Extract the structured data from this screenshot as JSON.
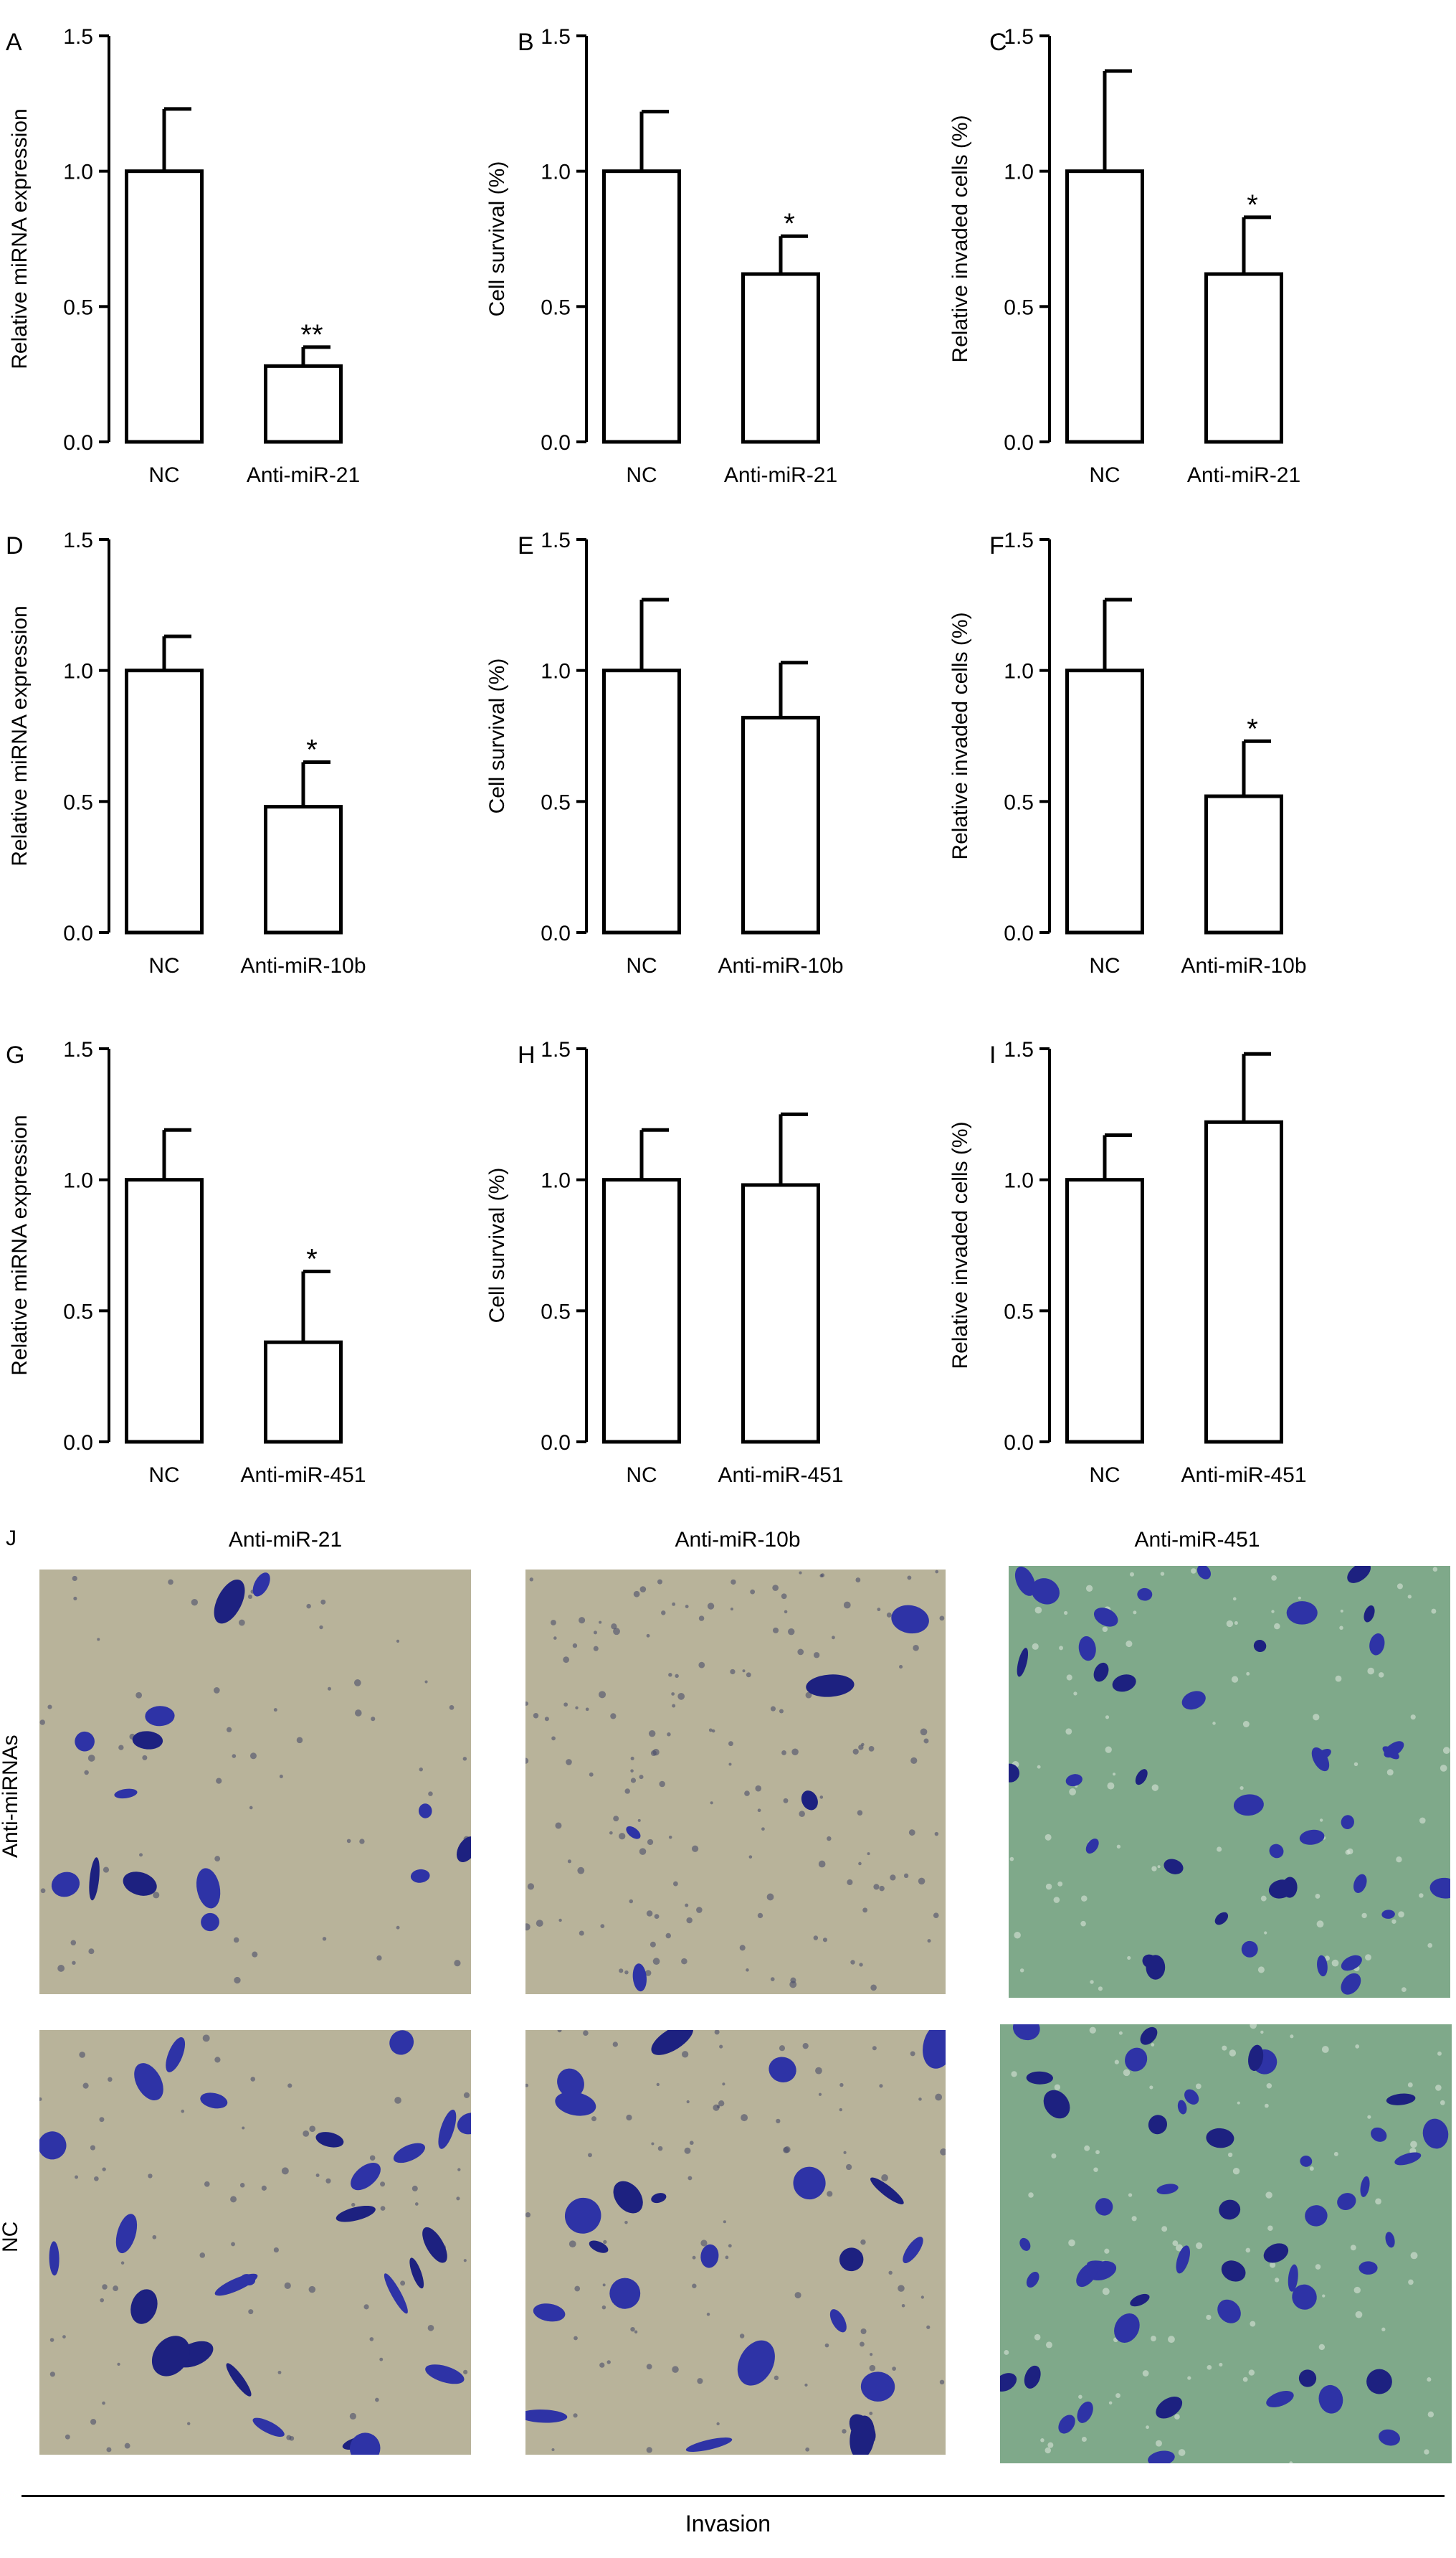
{
  "chart_data": [
    {
      "panel": "A",
      "type": "bar",
      "categories": [
        "NC",
        "Anti-miR-21"
      ],
      "values": [
        1.0,
        0.28
      ],
      "errors": [
        0.23,
        0.07
      ],
      "significance": [
        "",
        "**"
      ],
      "ylabel": "Relative miRNA expression",
      "ylim": [
        0,
        1.5
      ],
      "yticks": [
        "0.0",
        "0.5",
        "1.0",
        "1.5"
      ]
    },
    {
      "panel": "B",
      "type": "bar",
      "categories": [
        "NC",
        "Anti-miR-21"
      ],
      "values": [
        1.0,
        0.62
      ],
      "errors": [
        0.22,
        0.14
      ],
      "significance": [
        "",
        "*"
      ],
      "ylabel": "Cell survival (%)",
      "ylim": [
        0,
        1.5
      ],
      "yticks": [
        "0.0",
        "0.5",
        "1.0",
        "1.5"
      ]
    },
    {
      "panel": "C",
      "type": "bar",
      "categories": [
        "NC",
        "Anti-miR-21"
      ],
      "values": [
        1.0,
        0.62
      ],
      "errors": [
        0.37,
        0.21
      ],
      "significance": [
        "",
        "*"
      ],
      "ylabel": "Relative invaded cells (%)",
      "ylim": [
        0,
        1.5
      ],
      "yticks": [
        "0.0",
        "0.5",
        "1.0",
        "1.5"
      ]
    },
    {
      "panel": "D",
      "type": "bar",
      "categories": [
        "NC",
        "Anti-miR-10b"
      ],
      "values": [
        1.0,
        0.48
      ],
      "errors": [
        0.13,
        0.17
      ],
      "significance": [
        "",
        "*"
      ],
      "ylabel": "Relative miRNA expression",
      "ylim": [
        0,
        1.5
      ],
      "yticks": [
        "0.0",
        "0.5",
        "1.0",
        "1.5"
      ]
    },
    {
      "panel": "E",
      "type": "bar",
      "categories": [
        "NC",
        "Anti-miR-10b"
      ],
      "values": [
        1.0,
        0.82
      ],
      "errors": [
        0.27,
        0.21
      ],
      "significance": [
        "",
        ""
      ],
      "ylabel": "Cell survival (%)",
      "ylim": [
        0,
        1.5
      ],
      "yticks": [
        "0.0",
        "0.5",
        "1.0",
        "1.5"
      ]
    },
    {
      "panel": "F",
      "type": "bar",
      "categories": [
        "NC",
        "Anti-miR-10b"
      ],
      "values": [
        1.0,
        0.52
      ],
      "errors": [
        0.27,
        0.21
      ],
      "significance": [
        "",
        "*"
      ],
      "ylabel": "Relative invaded cells (%)",
      "ylim": [
        0,
        1.5
      ],
      "yticks": [
        "0.0",
        "0.5",
        "1.0",
        "1.5"
      ]
    },
    {
      "panel": "G",
      "type": "bar",
      "categories": [
        "NC",
        "Anti-miR-451"
      ],
      "values": [
        1.0,
        0.38
      ],
      "errors": [
        0.19,
        0.27
      ],
      "significance": [
        "",
        "*"
      ],
      "ylabel": "Relative miRNA expression",
      "ylim": [
        0,
        1.5
      ],
      "yticks": [
        "0.0",
        "0.5",
        "1.0",
        "1.5"
      ]
    },
    {
      "panel": "H",
      "type": "bar",
      "categories": [
        "NC",
        "Anti-miR-451"
      ],
      "values": [
        1.0,
        0.98
      ],
      "errors": [
        0.19,
        0.27
      ],
      "significance": [
        "",
        ""
      ],
      "ylabel": "Cell survival (%)",
      "ylim": [
        0,
        1.5
      ],
      "yticks": [
        "0.0",
        "0.5",
        "1.0",
        "1.5"
      ]
    },
    {
      "panel": "I",
      "type": "bar",
      "categories": [
        "NC",
        "Anti-miR-451"
      ],
      "values": [
        1.0,
        1.22
      ],
      "errors": [
        0.17,
        0.26
      ],
      "significance": [
        "",
        ""
      ],
      "ylabel": "Relative invaded cells (%)",
      "ylim": [
        0,
        1.5
      ],
      "yticks": [
        "0.0",
        "0.5",
        "1.0",
        "1.5"
      ]
    }
  ],
  "micrographs": {
    "panel_label": "J",
    "column_titles": [
      "Anti-miR-21",
      "Anti-miR-10b",
      "Anti-miR-451"
    ],
    "row_labels": [
      "Anti-miRNAs",
      "NC"
    ],
    "footer_label": "Invasion",
    "colors": {
      "warm_background": "#b8b39a",
      "warm_background_light": "#c9c6b3",
      "green_background": "#7fa98a",
      "stain": "#2e33a6",
      "stain_dark": "#1d2180"
    }
  }
}
